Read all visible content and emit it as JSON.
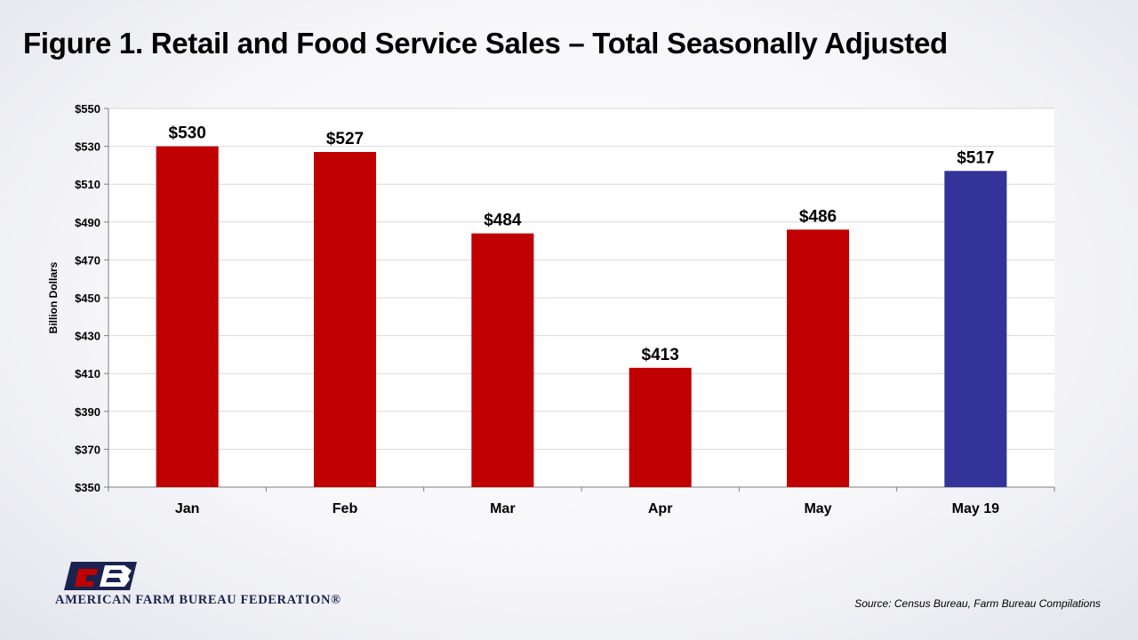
{
  "page": {
    "title": "Figure 1. Retail and Food Service Sales – Total Seasonally Adjusted",
    "source": "Source: Census Bureau, Farm Bureau Compilations",
    "org_name": "AMERICAN FARM BUREAU FEDERATION®",
    "logo_letters": "FB"
  },
  "chart_data": {
    "type": "bar",
    "title": "",
    "xlabel": "",
    "ylabel": "Billion Dollars",
    "ylim": [
      350,
      550
    ],
    "yticks": [
      350,
      370,
      390,
      410,
      430,
      450,
      470,
      490,
      510,
      530,
      550
    ],
    "ytick_labels": [
      "$350",
      "$370",
      "$390",
      "$410",
      "$430",
      "$450",
      "$470",
      "$490",
      "$510",
      "$530",
      "$550"
    ],
    "categories": [
      "Jan",
      "Feb",
      "Mar",
      "Apr",
      "May",
      "May 19"
    ],
    "values": [
      530,
      527,
      484,
      413,
      486,
      517
    ],
    "data_labels": [
      "$530",
      "$527",
      "$484",
      "$413",
      "$486",
      "$517"
    ],
    "bar_colors": [
      "#c00000",
      "#c00000",
      "#c00000",
      "#c00000",
      "#c00000",
      "#333399"
    ],
    "grid": true,
    "legend": "none"
  }
}
